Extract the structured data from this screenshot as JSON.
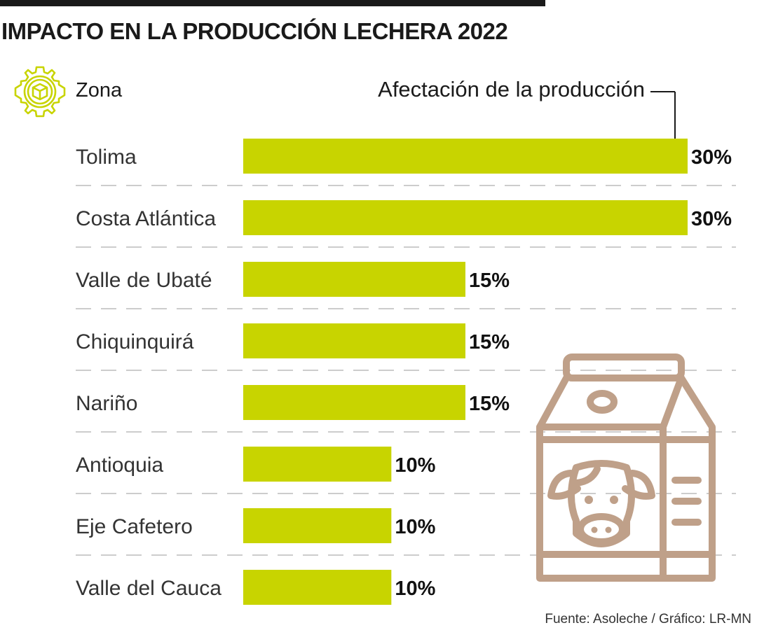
{
  "title": "IMPACTO EN LA PRODUCCIÓN LECHERA 2022",
  "header": {
    "category_label": "Zona",
    "value_label": "Afectación de la producción"
  },
  "source": "Fuente: Asoleche / Gráfico: LR-MN",
  "icons": {
    "header": "gear-box-icon",
    "illustration": "milk-carton-cow-icon"
  },
  "colors": {
    "bar": "#c8d400",
    "icon_gear": "#c8d400",
    "illustration": "#bfa089",
    "separator": "#bbbbbb"
  },
  "chart_data": {
    "type": "bar",
    "orientation": "horizontal",
    "categories": [
      "Tolima",
      "Costa Atlántica",
      "Valle de Ubaté",
      "Chiquinquirá",
      "Nariño",
      "Antioquia",
      "Eje Cafetero",
      "Valle del Cauca"
    ],
    "values": [
      30,
      30,
      15,
      15,
      15,
      10,
      10,
      10
    ],
    "value_labels": [
      "30%",
      "30%",
      "15%",
      "15%",
      "15%",
      "10%",
      "10%",
      "10%"
    ],
    "xlim": [
      0,
      30
    ],
    "grid": false,
    "legend": "none"
  }
}
